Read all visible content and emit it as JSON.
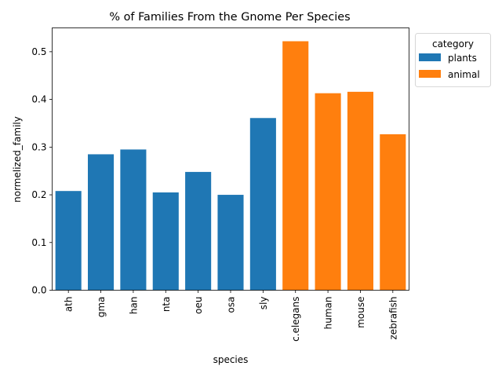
{
  "chart_data": {
    "type": "bar",
    "title": "% of Families From the Gnome Per Species",
    "xlabel": "species",
    "ylabel": "normelized_family",
    "ylim": [
      0,
      0.55
    ],
    "yticks": [
      0.0,
      0.1,
      0.2,
      0.3,
      0.4,
      0.5
    ],
    "ytick_labels": [
      "0.0",
      "0.1",
      "0.2",
      "0.3",
      "0.4",
      "0.5"
    ],
    "grid": false,
    "legend": {
      "title": "category",
      "placement": "top-right, outside the axes",
      "entries": [
        {
          "label": "plants",
          "color": "#1f77b4"
        },
        {
          "label": "animal",
          "color": "#ff7f0e"
        }
      ]
    },
    "categories": [
      "ath",
      "gma",
      "han",
      "nta",
      "oeu",
      "osa",
      "sly",
      "c.elegans",
      "human",
      "mouse",
      "zebrafish"
    ],
    "values": [
      0.208,
      0.285,
      0.295,
      0.205,
      0.248,
      0.2,
      0.361,
      0.522,
      0.413,
      0.416,
      0.327
    ],
    "hue": [
      "plants",
      "plants",
      "plants",
      "plants",
      "plants",
      "plants",
      "plants",
      "animal",
      "animal",
      "animal",
      "animal"
    ]
  }
}
